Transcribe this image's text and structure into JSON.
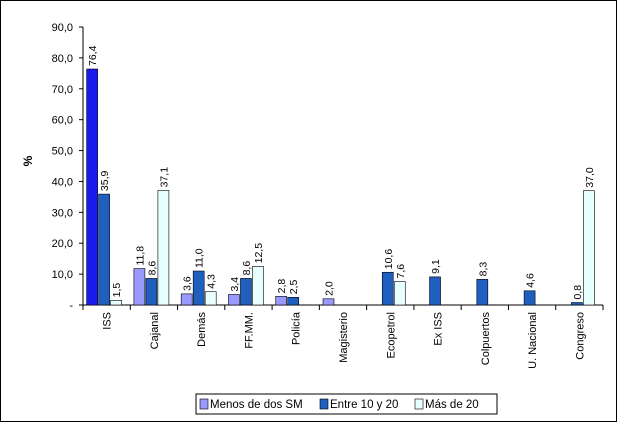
{
  "chart_data": {
    "type": "bar",
    "ylabel": "%",
    "ylim": [
      0,
      90
    ],
    "ytick_labels": [
      "-",
      "10,0",
      "20,0",
      "30,0",
      "40,0",
      "50,0",
      "60,0",
      "70,0",
      "80,0",
      "90,0"
    ],
    "categories": [
      "ISS",
      "Cajanal",
      "Demás",
      "FF.MM.",
      "Policía",
      "Magisterio",
      "Ecopetrol",
      "Ex ISS",
      "Colpuertos",
      "U. Nacional",
      "Congreso"
    ],
    "series": [
      {
        "name": "Menos de dos SM",
        "values": [
          76.4,
          11.8,
          3.6,
          3.4,
          2.8,
          2.0,
          null,
          null,
          null,
          null,
          null
        ],
        "labels": [
          "76,4",
          "11,8",
          "3,6",
          "3,4",
          "2,8",
          "2,0",
          null,
          null,
          null,
          null,
          null
        ]
      },
      {
        "name": "Entre 10 y 20",
        "values": [
          35.9,
          8.6,
          11.0,
          8.6,
          2.5,
          null,
          10.6,
          9.1,
          8.3,
          4.6,
          0.8
        ],
        "labels": [
          "35,9",
          "8,6",
          "11,0",
          "8,6",
          "2,5",
          null,
          "10,6",
          "9,1",
          "8,3",
          "4,6",
          "0,8"
        ]
      },
      {
        "name": "Más de 20",
        "values": [
          1.5,
          37.1,
          4.3,
          12.5,
          null,
          null,
          7.6,
          null,
          null,
          null,
          37.0
        ],
        "labels": [
          "1,5",
          "37,1",
          "4,3",
          "12,5",
          null,
          null,
          "7,6",
          null,
          null,
          null,
          "37,0"
        ]
      }
    ],
    "bar_colors": [
      "#9999ff",
      "#1f5fbf",
      "#e8ffff"
    ],
    "first_bar_color": "#1a1aee",
    "grid": false,
    "legend_position": "bottom"
  }
}
